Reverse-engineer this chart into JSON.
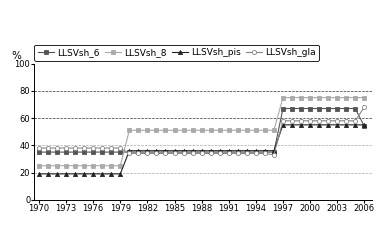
{
  "title": "",
  "ylabel": "%",
  "xlim": [
    1969.5,
    2006.8
  ],
  "ylim": [
    0,
    100
  ],
  "yticks": [
    0,
    20,
    40,
    60,
    80,
    100
  ],
  "xticks": [
    1970,
    1973,
    1976,
    1979,
    1982,
    1985,
    1988,
    1991,
    1994,
    1997,
    2000,
    2003,
    2006
  ],
  "series": [
    {
      "label": "LLSVsh_6",
      "marker": "s",
      "markersize": 3,
      "color": "#555555",
      "markerfacecolor": "#555555",
      "linewidth": 0.8,
      "data": [
        [
          1970,
          35
        ],
        [
          1971,
          35
        ],
        [
          1972,
          35
        ],
        [
          1973,
          35
        ],
        [
          1974,
          35
        ],
        [
          1975,
          35
        ],
        [
          1976,
          35
        ],
        [
          1977,
          35
        ],
        [
          1978,
          35
        ],
        [
          1979,
          35
        ],
        [
          1980,
          35
        ],
        [
          1981,
          35
        ],
        [
          1982,
          35
        ],
        [
          1983,
          35
        ],
        [
          1984,
          35
        ],
        [
          1985,
          35
        ],
        [
          1986,
          35
        ],
        [
          1987,
          35
        ],
        [
          1988,
          35
        ],
        [
          1989,
          35
        ],
        [
          1990,
          35
        ],
        [
          1991,
          35
        ],
        [
          1992,
          35
        ],
        [
          1993,
          35
        ],
        [
          1994,
          35
        ],
        [
          1995,
          35
        ],
        [
          1996,
          35
        ],
        [
          1997,
          67
        ],
        [
          1998,
          67
        ],
        [
          1999,
          67
        ],
        [
          2000,
          67
        ],
        [
          2001,
          67
        ],
        [
          2002,
          67
        ],
        [
          2003,
          67
        ],
        [
          2004,
          67
        ],
        [
          2005,
          67
        ],
        [
          2006,
          54
        ]
      ]
    },
    {
      "label": "LLSVsh_8",
      "marker": "s",
      "markersize": 3,
      "color": "#aaaaaa",
      "markerfacecolor": "#aaaaaa",
      "linewidth": 0.8,
      "data": [
        [
          1970,
          25
        ],
        [
          1971,
          25
        ],
        [
          1972,
          25
        ],
        [
          1973,
          25
        ],
        [
          1974,
          25
        ],
        [
          1975,
          25
        ],
        [
          1976,
          25
        ],
        [
          1977,
          25
        ],
        [
          1978,
          25
        ],
        [
          1979,
          25
        ],
        [
          1980,
          51
        ],
        [
          1981,
          51
        ],
        [
          1982,
          51
        ],
        [
          1983,
          51
        ],
        [
          1984,
          51
        ],
        [
          1985,
          51
        ],
        [
          1986,
          51
        ],
        [
          1987,
          51
        ],
        [
          1988,
          51
        ],
        [
          1989,
          51
        ],
        [
          1990,
          51
        ],
        [
          1991,
          51
        ],
        [
          1992,
          51
        ],
        [
          1993,
          51
        ],
        [
          1994,
          51
        ],
        [
          1995,
          51
        ],
        [
          1996,
          51
        ],
        [
          1997,
          75
        ],
        [
          1998,
          75
        ],
        [
          1999,
          75
        ],
        [
          2000,
          75
        ],
        [
          2001,
          75
        ],
        [
          2002,
          75
        ],
        [
          2003,
          75
        ],
        [
          2004,
          75
        ],
        [
          2005,
          75
        ],
        [
          2006,
          75
        ]
      ]
    },
    {
      "label": "LLSVsh_pis",
      "marker": "^",
      "markersize": 3,
      "color": "#222222",
      "markerfacecolor": "#222222",
      "linewidth": 0.8,
      "data": [
        [
          1970,
          19
        ],
        [
          1971,
          19
        ],
        [
          1972,
          19
        ],
        [
          1973,
          19
        ],
        [
          1974,
          19
        ],
        [
          1975,
          19
        ],
        [
          1976,
          19
        ],
        [
          1977,
          19
        ],
        [
          1978,
          19
        ],
        [
          1979,
          19
        ],
        [
          1980,
          36
        ],
        [
          1981,
          36
        ],
        [
          1982,
          36
        ],
        [
          1983,
          36
        ],
        [
          1984,
          36
        ],
        [
          1985,
          36
        ],
        [
          1986,
          36
        ],
        [
          1987,
          36
        ],
        [
          1988,
          36
        ],
        [
          1989,
          36
        ],
        [
          1990,
          36
        ],
        [
          1991,
          36
        ],
        [
          1992,
          36
        ],
        [
          1993,
          36
        ],
        [
          1994,
          36
        ],
        [
          1995,
          36
        ],
        [
          1996,
          36
        ],
        [
          1997,
          55
        ],
        [
          1998,
          55
        ],
        [
          1999,
          55
        ],
        [
          2000,
          55
        ],
        [
          2001,
          55
        ],
        [
          2002,
          55
        ],
        [
          2003,
          55
        ],
        [
          2004,
          55
        ],
        [
          2005,
          55
        ],
        [
          2006,
          55
        ]
      ]
    },
    {
      "label": "LLSVsh_gla",
      "marker": "o",
      "markersize": 3,
      "color": "#888888",
      "markerfacecolor": "#ffffff",
      "linewidth": 0.8,
      "data": [
        [
          1970,
          38
        ],
        [
          1971,
          38
        ],
        [
          1972,
          38
        ],
        [
          1973,
          38
        ],
        [
          1974,
          38
        ],
        [
          1975,
          38
        ],
        [
          1976,
          38
        ],
        [
          1977,
          38
        ],
        [
          1978,
          38
        ],
        [
          1979,
          38
        ],
        [
          1980,
          34
        ],
        [
          1981,
          34
        ],
        [
          1982,
          34
        ],
        [
          1983,
          34
        ],
        [
          1984,
          34
        ],
        [
          1985,
          34
        ],
        [
          1986,
          34
        ],
        [
          1987,
          34
        ],
        [
          1988,
          34
        ],
        [
          1989,
          34
        ],
        [
          1990,
          34
        ],
        [
          1991,
          34
        ],
        [
          1992,
          34
        ],
        [
          1993,
          34
        ],
        [
          1994,
          34
        ],
        [
          1995,
          34
        ],
        [
          1996,
          33
        ],
        [
          1997,
          58
        ],
        [
          1998,
          58
        ],
        [
          1999,
          58
        ],
        [
          2000,
          58
        ],
        [
          2001,
          58
        ],
        [
          2002,
          58
        ],
        [
          2003,
          58
        ],
        [
          2004,
          58
        ],
        [
          2005,
          58
        ],
        [
          2006,
          68
        ]
      ]
    }
  ],
  "grid_dark_color": "#333333",
  "grid_dark_style": "--",
  "grid_light_color": "#aaaaaa",
  "grid_light_style": "--",
  "background_color": "#ffffff",
  "legend_fontsize": 6.5,
  "tick_fontsize": 6,
  "ylabel_fontsize": 7.5
}
